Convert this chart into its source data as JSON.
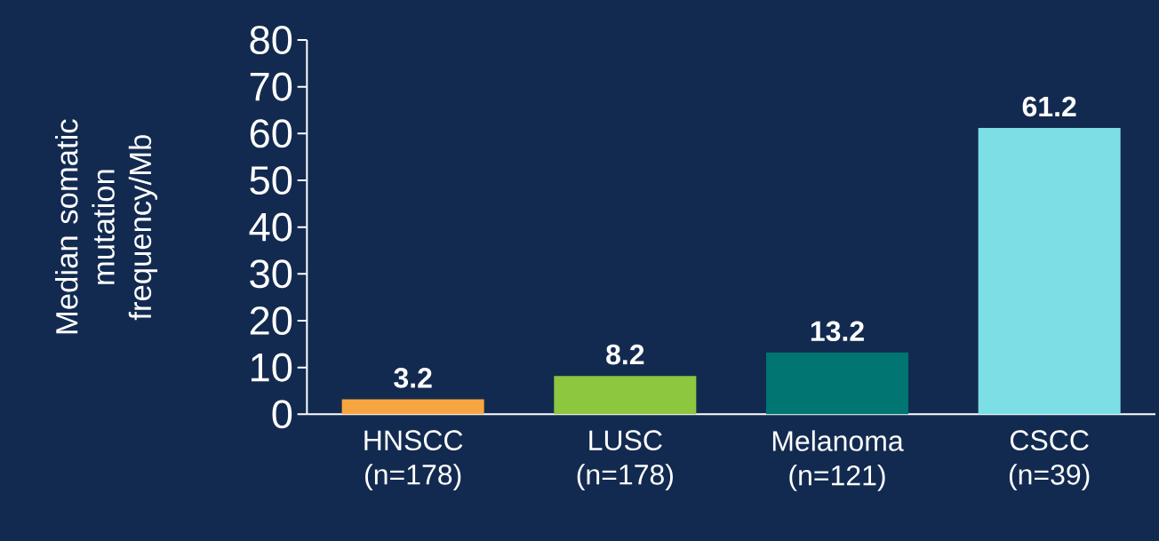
{
  "chart_data": {
    "type": "bar",
    "ylabel": "Median somatic mutation frequency/Mb",
    "categories": [
      "HNSCC (n=178)",
      "LUSC (n=178)",
      "Melanoma (n=121)",
      "CSCC (n=39)"
    ],
    "values": [
      3.2,
      8.2,
      13.2,
      61.2
    ],
    "colors": [
      "#f7a541",
      "#8dc63f",
      "#007572",
      "#7ddfe6"
    ],
    "ylim": [
      0,
      80
    ],
    "yticks": [
      0,
      10,
      20,
      30,
      40,
      50,
      60,
      70,
      80
    ],
    "data_labels": true
  }
}
